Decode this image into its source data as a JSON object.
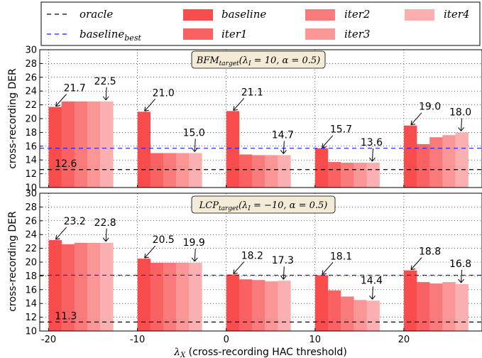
{
  "colors": {
    "baseline": "#f94c4c",
    "iter1": "#f96262",
    "iter2": "#f97a7a",
    "iter3": "#fa9696",
    "iter4": "#fab0b0",
    "oracle_line": "#000000",
    "baseline_best_line": "#1a1aff",
    "title_box_fill": "#f3ebd6"
  },
  "legend": {
    "oracle": "oracle",
    "baseline_best_main": "baseline",
    "baseline_best_sub": "best",
    "baseline": "baseline",
    "iter1": "iter1",
    "iter2": "iter2",
    "iter3": "iter3",
    "iter4": "iter4"
  },
  "xlabel": {
    "lambda": "λ",
    "sub": "X",
    "rest": " (cross-recording HAC threshold)"
  },
  "chart_data": [
    {
      "type": "bar",
      "panel_title": {
        "prefix": "BFM",
        "sub": "target",
        "args_open": "(λ",
        "args_sub": "I",
        "args_rest": " = 10, α = 0.5)"
      },
      "ylabel": "cross-recording DER",
      "ylim": [
        10,
        30
      ],
      "yticks": [
        "10",
        "12",
        "14",
        "16",
        "18",
        "20",
        "22",
        "24",
        "26",
        "28",
        "30"
      ],
      "xticks": [
        "-20",
        "-10",
        "0",
        "10",
        "20"
      ],
      "grid": true,
      "oracle": 12.6,
      "oracle_label": "12.6",
      "baseline_best": 15.7,
      "groups": [
        {
          "x": -20,
          "values": [
            21.7,
            22.5,
            22.5,
            22.5,
            22.5
          ],
          "label_first": "21.7",
          "label_last": "22.5"
        },
        {
          "x": -10,
          "values": [
            21.0,
            15.0,
            15.0,
            15.0,
            15.0
          ],
          "label_first": "21.0",
          "label_last": "15.0"
        },
        {
          "x": 0,
          "values": [
            21.1,
            14.8,
            14.7,
            14.7,
            14.7
          ],
          "label_first": "21.1",
          "label_last": "14.7"
        },
        {
          "x": 10,
          "values": [
            15.7,
            13.7,
            13.6,
            13.6,
            13.6
          ],
          "label_first": "15.7",
          "label_last": "13.6"
        },
        {
          "x": 20,
          "values": [
            19.0,
            16.3,
            17.3,
            17.6,
            18.0
          ],
          "label_first": "19.0",
          "label_last": "18.0"
        }
      ]
    },
    {
      "type": "bar",
      "panel_title": {
        "prefix": "LCP",
        "sub": "target",
        "args_open": "(λ",
        "args_sub": "I",
        "args_rest": " = −10, α = 0.5)"
      },
      "ylabel": "cross-recording DER",
      "ylim": [
        10,
        30
      ],
      "yticks": [
        "10",
        "12",
        "14",
        "16",
        "18",
        "20",
        "22",
        "24",
        "26",
        "28",
        "30"
      ],
      "xticks": [
        "-20",
        "-10",
        "0",
        "10",
        "20"
      ],
      "grid": true,
      "oracle": 11.3,
      "oracle_label": "11.3",
      "baseline_best": 18.1,
      "groups": [
        {
          "x": -20,
          "values": [
            23.2,
            22.6,
            22.8,
            22.8,
            22.8
          ],
          "label_first": "23.2",
          "label_last": "22.8"
        },
        {
          "x": -10,
          "values": [
            20.5,
            19.9,
            19.9,
            19.9,
            19.9
          ],
          "label_first": "20.5",
          "label_last": "19.9"
        },
        {
          "x": 0,
          "values": [
            18.2,
            17.5,
            17.4,
            17.2,
            17.3
          ],
          "label_first": "18.2",
          "label_last": "17.3"
        },
        {
          "x": 10,
          "values": [
            18.1,
            15.9,
            15.0,
            14.5,
            14.4
          ],
          "label_first": "18.1",
          "label_last": "14.4"
        },
        {
          "x": 20,
          "values": [
            18.8,
            17.1,
            16.9,
            17.1,
            16.8
          ],
          "label_first": "18.8",
          "label_last": "16.8"
        }
      ]
    }
  ]
}
